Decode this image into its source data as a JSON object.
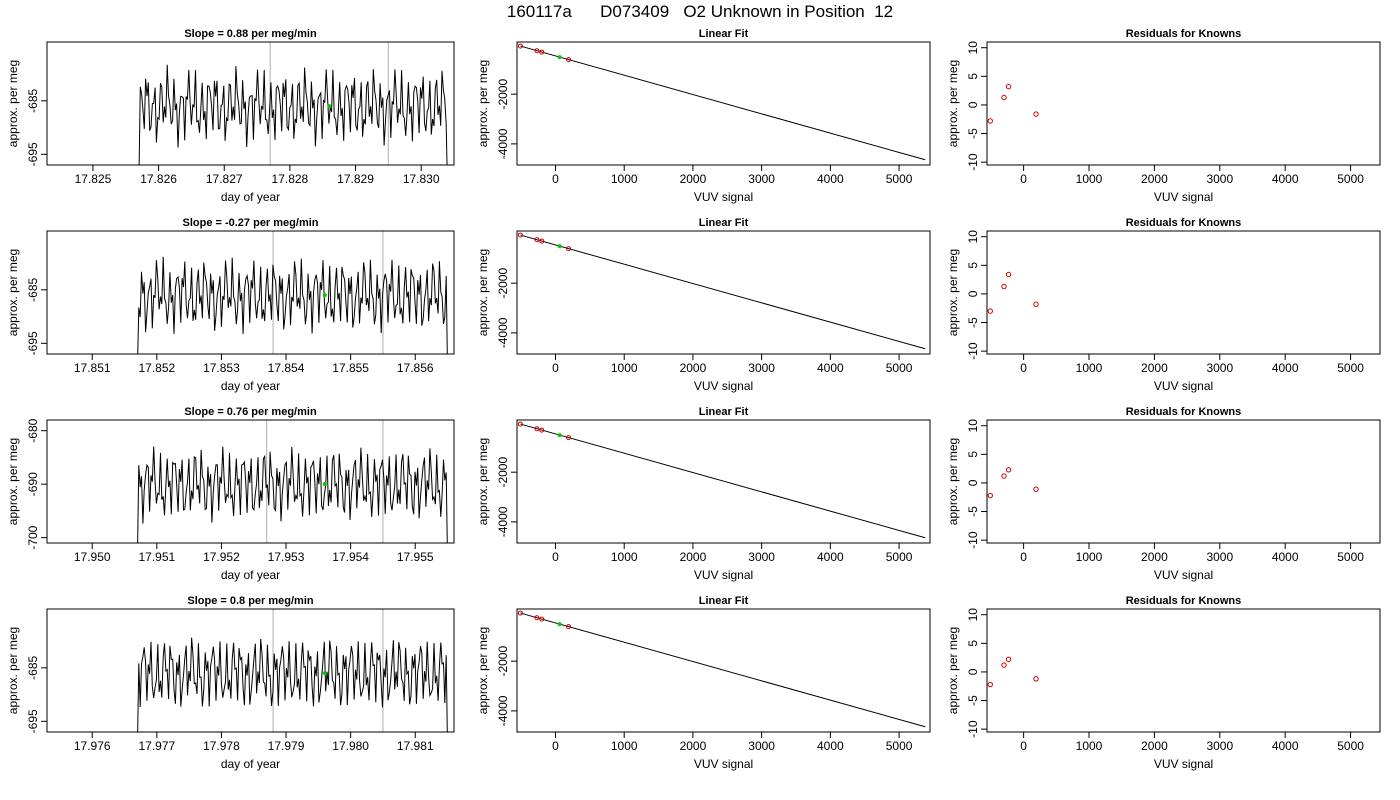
{
  "title": "160117a      D073409   O2 Unknown in Position  12",
  "colors": {
    "line": "#000000",
    "known": "#cc0000",
    "unknown": "#00cc00",
    "marker": "#bbbbbb"
  },
  "chart_data": [
    {
      "type": "line",
      "kind": "time",
      "row": 0,
      "title": "Slope =  0.88  per meg/min",
      "xlabel": "day of year",
      "ylabel": "approx. per meg",
      "xlim": [
        17.8243,
        17.8305
      ],
      "ylim": [
        -697,
        -674
      ],
      "xticks": [
        17.825,
        17.826,
        17.827,
        17.828,
        17.829,
        17.83
      ],
      "xtick_labels": [
        "17.825",
        "17.826",
        "17.827",
        "17.828",
        "17.829",
        "17.830"
      ],
      "yticks": [
        -695,
        -685
      ],
      "ytick_labels": [
        "-695",
        "-685"
      ],
      "vlines": [
        17.8277,
        17.8295
      ],
      "x_start": 17.8257,
      "x_end": 17.8304,
      "n_points": 230,
      "y_mean": -686,
      "y_amplitude": 4,
      "y_start": -700,
      "unknown_point": {
        "x": 17.8286,
        "y": -686
      }
    },
    {
      "type": "line",
      "kind": "fit",
      "row": 0,
      "title": "Linear Fit",
      "xlabel": "VUV signal",
      "ylabel": "approx. per meg",
      "xlim": [
        -560,
        5450
      ],
      "ylim": [
        -4850,
        100
      ],
      "xticks": [
        0,
        1000,
        2000,
        3000,
        4000,
        5000
      ],
      "xtick_labels": [
        "0",
        "1000",
        "2000",
        "3000",
        "4000",
        "5000"
      ],
      "yticks": [
        -2000,
        -4000
      ],
      "ytick_labels": [
        "-2000",
        "-4000"
      ],
      "fit_line": {
        "x": [
          -510,
          5380
        ],
        "y": [
          -64,
          -4640
        ]
      },
      "knowns": {
        "x": [
          -510,
          -270,
          -200,
          190
        ],
        "y": [
          -64,
          -250,
          -305,
          -608
        ]
      },
      "unknown": {
        "x": 60,
        "y": -510
      }
    },
    {
      "type": "scatter",
      "kind": "resid",
      "row": 0,
      "title": "Residuals for Knowns",
      "xlabel": "VUV signal",
      "ylabel": "approx. per meg",
      "xlim": [
        -560,
        5450
      ],
      "ylim": [
        -10.5,
        11
      ],
      "xticks": [
        0,
        1000,
        2000,
        3000,
        4000,
        5000
      ],
      "xtick_labels": [
        "0",
        "1000",
        "2000",
        "3000",
        "4000",
        "5000"
      ],
      "yticks": [
        -10,
        -5,
        0,
        5,
        10
      ],
      "ytick_labels": [
        "-10",
        "-5",
        "0",
        "5",
        "10"
      ],
      "points": {
        "x": [
          -510,
          -300,
          -230,
          190
        ],
        "y": [
          -2.8,
          1.3,
          3.2,
          -1.6
        ]
      }
    },
    {
      "type": "line",
      "kind": "time",
      "row": 1,
      "title": "Slope =  -0.27  per meg/min",
      "xlabel": "day of year",
      "ylabel": "approx. per meg",
      "xlim": [
        17.8503,
        17.8566
      ],
      "ylim": [
        -697,
        -674
      ],
      "xticks": [
        17.851,
        17.852,
        17.853,
        17.854,
        17.855,
        17.856
      ],
      "xtick_labels": [
        "17.851",
        "17.852",
        "17.853",
        "17.854",
        "17.855",
        "17.856"
      ],
      "yticks": [
        -695,
        -685
      ],
      "ytick_labels": [
        "-695",
        "-685"
      ],
      "vlines": [
        17.8538,
        17.8555
      ],
      "x_start": 17.8517,
      "x_end": 17.8565,
      "n_points": 230,
      "y_mean": -686,
      "y_amplitude": 4,
      "y_start": -700,
      "unknown_point": {
        "x": 17.8546,
        "y": -686
      }
    },
    {
      "type": "line",
      "kind": "fit",
      "row": 1,
      "title": "Linear Fit",
      "xlabel": "VUV signal",
      "ylabel": "approx. per meg",
      "xlim": [
        -560,
        5450
      ],
      "ylim": [
        -4850,
        100
      ],
      "xticks": [
        0,
        1000,
        2000,
        3000,
        4000,
        5000
      ],
      "xtick_labels": [
        "0",
        "1000",
        "2000",
        "3000",
        "4000",
        "5000"
      ],
      "yticks": [
        -2000,
        -4000
      ],
      "ytick_labels": [
        "-2000",
        "-4000"
      ],
      "fit_line": {
        "x": [
          -510,
          5380
        ],
        "y": [
          -64,
          -4640
        ]
      },
      "knowns": {
        "x": [
          -510,
          -270,
          -200,
          190
        ],
        "y": [
          -64,
          -250,
          -305,
          -608
        ]
      },
      "unknown": {
        "x": 60,
        "y": -510
      }
    },
    {
      "type": "scatter",
      "kind": "resid",
      "row": 1,
      "title": "Residuals for Knowns",
      "xlabel": "VUV signal",
      "ylabel": "approx. per meg",
      "xlim": [
        -560,
        5450
      ],
      "ylim": [
        -10.5,
        11
      ],
      "xticks": [
        0,
        1000,
        2000,
        3000,
        4000,
        5000
      ],
      "xtick_labels": [
        "0",
        "1000",
        "2000",
        "3000",
        "4000",
        "5000"
      ],
      "yticks": [
        -10,
        -5,
        0,
        5,
        10
      ],
      "ytick_labels": [
        "-10",
        "-5",
        "0",
        "5",
        "10"
      ],
      "points": {
        "x": [
          -510,
          -300,
          -230,
          190
        ],
        "y": [
          -3.0,
          1.3,
          3.4,
          -1.8
        ]
      }
    },
    {
      "type": "line",
      "kind": "time",
      "row": 2,
      "title": "Slope =  0.76  per meg/min",
      "xlabel": "day of year",
      "ylabel": "approx. per meg",
      "xlim": [
        17.9493,
        17.9556
      ],
      "ylim": [
        -701,
        -678
      ],
      "xticks": [
        17.95,
        17.951,
        17.952,
        17.953,
        17.954,
        17.955
      ],
      "xtick_labels": [
        "17.950",
        "17.951",
        "17.952",
        "17.953",
        "17.954",
        "17.955"
      ],
      "yticks": [
        -700,
        -690,
        -680
      ],
      "ytick_labels": [
        "-700",
        "-690",
        "-680"
      ],
      "vlines": [
        17.9527,
        17.9545
      ],
      "x_start": 17.9507,
      "x_end": 17.9555,
      "n_points": 230,
      "y_mean": -690,
      "y_amplitude": 4,
      "y_start": -704,
      "unknown_point": {
        "x": 17.9536,
        "y": -690
      }
    },
    {
      "type": "line",
      "kind": "fit",
      "row": 2,
      "title": "Linear Fit",
      "xlabel": "VUV signal",
      "ylabel": "approx. per meg",
      "xlim": [
        -560,
        5450
      ],
      "ylim": [
        -4850,
        100
      ],
      "xticks": [
        0,
        1000,
        2000,
        3000,
        4000,
        5000
      ],
      "xtick_labels": [
        "0",
        "1000",
        "2000",
        "3000",
        "4000",
        "5000"
      ],
      "yticks": [
        -2000,
        -4000
      ],
      "ytick_labels": [
        "-2000",
        "-4000"
      ],
      "fit_line": {
        "x": [
          -510,
          5380
        ],
        "y": [
          -64,
          -4640
        ]
      },
      "knowns": {
        "x": [
          -510,
          -270,
          -200,
          190
        ],
        "y": [
          -64,
          -250,
          -305,
          -608
        ]
      },
      "unknown": {
        "x": 60,
        "y": -510
      }
    },
    {
      "type": "scatter",
      "kind": "resid",
      "row": 2,
      "title": "Residuals for Knowns",
      "xlabel": "VUV signal",
      "ylabel": "approx. per meg",
      "xlim": [
        -560,
        5450
      ],
      "ylim": [
        -10.5,
        11
      ],
      "xticks": [
        0,
        1000,
        2000,
        3000,
        4000,
        5000
      ],
      "xtick_labels": [
        "0",
        "1000",
        "2000",
        "3000",
        "4000",
        "5000"
      ],
      "yticks": [
        -10,
        -5,
        0,
        5,
        10
      ],
      "ytick_labels": [
        "-10",
        "-5",
        "0",
        "5",
        "10"
      ],
      "points": {
        "x": [
          -510,
          -300,
          -230,
          190
        ],
        "y": [
          -2.2,
          1.2,
          2.3,
          -1.1
        ]
      }
    },
    {
      "type": "line",
      "kind": "time",
      "row": 3,
      "title": "Slope =  0.8  per meg/min",
      "xlabel": "day of year",
      "ylabel": "approx. per meg",
      "xlim": [
        17.9753,
        17.9816
      ],
      "ylim": [
        -697,
        -674
      ],
      "xticks": [
        17.976,
        17.977,
        17.978,
        17.979,
        17.98,
        17.981
      ],
      "xtick_labels": [
        "17.976",
        "17.977",
        "17.978",
        "17.979",
        "17.980",
        "17.981"
      ],
      "yticks": [
        -695,
        -685
      ],
      "ytick_labels": [
        "-695",
        "-685"
      ],
      "vlines": [
        17.9788,
        17.9805
      ],
      "x_start": 17.9767,
      "x_end": 17.9815,
      "n_points": 230,
      "y_mean": -686,
      "y_amplitude": 4,
      "y_start": -700,
      "unknown_point": {
        "x": 17.9796,
        "y": -686
      }
    },
    {
      "type": "line",
      "kind": "fit",
      "row": 3,
      "title": "Linear Fit",
      "xlabel": "VUV signal",
      "ylabel": "approx. per meg",
      "xlim": [
        -560,
        5450
      ],
      "ylim": [
        -4850,
        100
      ],
      "xticks": [
        0,
        1000,
        2000,
        3000,
        4000,
        5000
      ],
      "xtick_labels": [
        "0",
        "1000",
        "2000",
        "3000",
        "4000",
        "5000"
      ],
      "yticks": [
        -2000,
        -4000
      ],
      "ytick_labels": [
        "-2000",
        "-4000"
      ],
      "fit_line": {
        "x": [
          -510,
          5380
        ],
        "y": [
          -64,
          -4640
        ]
      },
      "knowns": {
        "x": [
          -510,
          -270,
          -200,
          190
        ],
        "y": [
          -64,
          -250,
          -305,
          -608
        ]
      },
      "unknown": {
        "x": 60,
        "y": -510
      }
    },
    {
      "type": "scatter",
      "kind": "resid",
      "row": 3,
      "title": "Residuals for Knowns",
      "xlabel": "VUV signal",
      "ylabel": "approx. per meg",
      "xlim": [
        -560,
        5450
      ],
      "ylim": [
        -10.5,
        11
      ],
      "xticks": [
        0,
        1000,
        2000,
        3000,
        4000,
        5000
      ],
      "xtick_labels": [
        "0",
        "1000",
        "2000",
        "3000",
        "4000",
        "5000"
      ],
      "yticks": [
        -10,
        -5,
        0,
        5,
        10
      ],
      "ytick_labels": [
        "-10",
        "-5",
        "0",
        "5",
        "10"
      ],
      "points": {
        "x": [
          -510,
          -300,
          -230,
          190
        ],
        "y": [
          -2.2,
          1.2,
          2.2,
          -1.2
        ]
      }
    }
  ]
}
